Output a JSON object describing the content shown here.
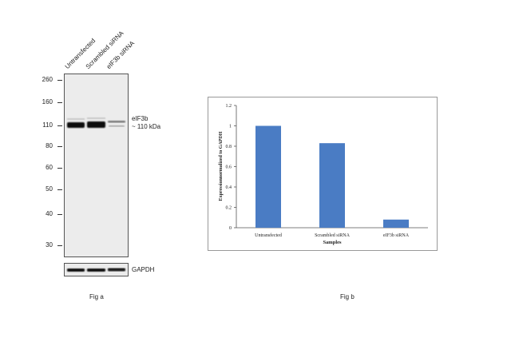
{
  "fig_a": {
    "lanes": [
      "Untransfected",
      "Scrambled siRNA",
      "eIF3b siRNA"
    ],
    "mw_markers": [
      "260",
      "160",
      "110",
      "80",
      "60",
      "50",
      "40",
      "30"
    ],
    "band_label_line1": "eIF3b",
    "band_label_line2": "~ 110 kDa",
    "loading_control": "GAPDH",
    "caption": "Fig a"
  },
  "fig_b": {
    "caption": "Fig b"
  },
  "chart_data": {
    "type": "bar",
    "categories": [
      "Untransfected",
      "Scrambled siRNA",
      "eIF3b siRNA"
    ],
    "values": [
      1.0,
      0.83,
      0.08
    ],
    "xlabel": "Samples",
    "ylabel": "Expressionnormalized to GAPDH",
    "ylim": [
      0,
      1.2
    ],
    "yticks": [
      "0",
      "0.2",
      "0.4",
      "0.6",
      "0.8",
      "1",
      "1.2"
    ],
    "bar_color": "#4a7cc4"
  }
}
